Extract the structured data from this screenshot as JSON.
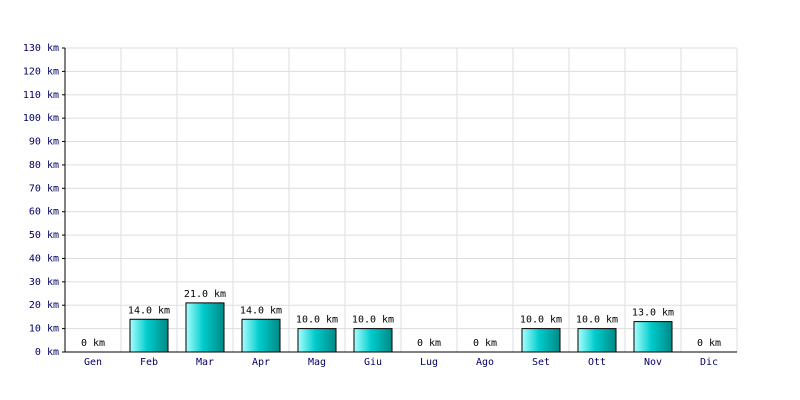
{
  "chart_data": {
    "type": "bar",
    "categories": [
      "Gen",
      "Feb",
      "Mar",
      "Apr",
      "Mag",
      "Giu",
      "Lug",
      "Ago",
      "Set",
      "Ott",
      "Nov",
      "Dic"
    ],
    "values": [
      0,
      14,
      21,
      14,
      10,
      10,
      0,
      0,
      10,
      10,
      13,
      0
    ],
    "value_labels": [
      "0 km",
      "14.0 km",
      "21.0 km",
      "14.0 km",
      "10.0 km",
      "10.0 km",
      "0 km",
      "0 km",
      "10.0 km",
      "10.0 km",
      "13.0 km",
      "0 km"
    ],
    "color": "#00cccc",
    "ylim": [
      0,
      130
    ],
    "yticks": [
      {
        "value": 0,
        "label": "0 km"
      },
      {
        "value": 10,
        "label": "10 km"
      },
      {
        "value": 20,
        "label": "20 km"
      },
      {
        "value": 30,
        "label": "30 km"
      },
      {
        "value": 40,
        "label": "40 km"
      },
      {
        "value": 50,
        "label": "50 km"
      },
      {
        "value": 60,
        "label": "60 km"
      },
      {
        "value": 70,
        "label": "70 km"
      },
      {
        "value": 80,
        "label": "80 km"
      },
      {
        "value": 90,
        "label": "90 km"
      },
      {
        "value": 100,
        "label": "100 km"
      },
      {
        "value": 110,
        "label": "110 km"
      },
      {
        "value": 120,
        "label": "120 km"
      },
      {
        "value": 130,
        "label": "130 km"
      }
    ],
    "grid": true
  }
}
